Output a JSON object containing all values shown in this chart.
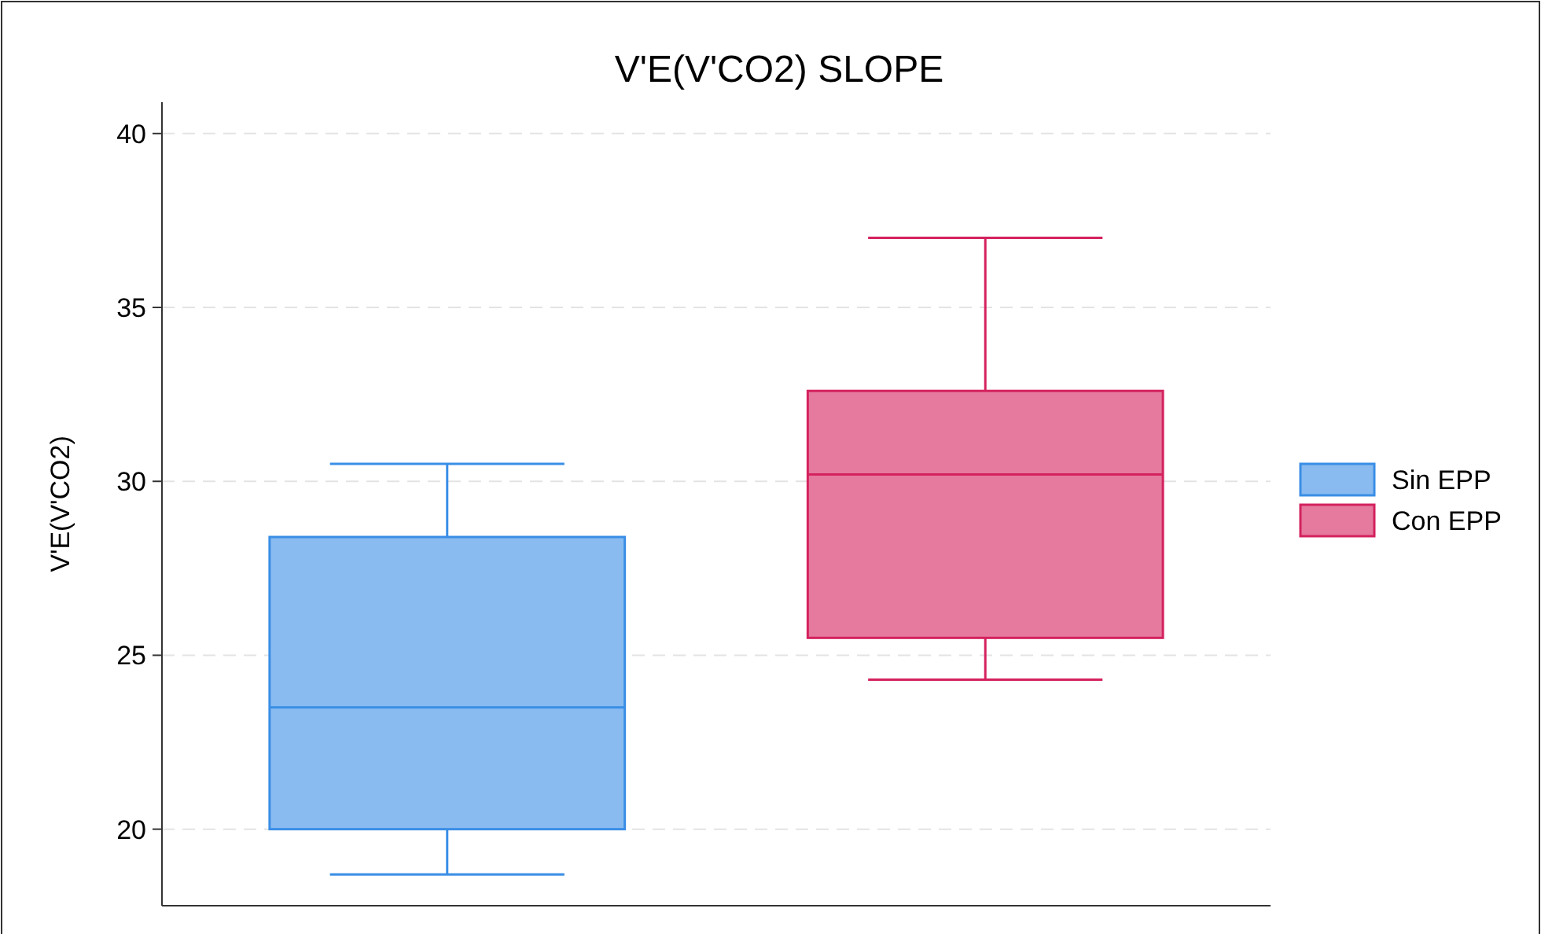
{
  "chart_data": {
    "type": "box",
    "title": "V'E(V'CO2) SLOPE",
    "ylabel": "V'E(V'CO2)",
    "categories": [
      null,
      null
    ],
    "ylim": [
      17.8,
      40.9
    ],
    "yticks": [
      20,
      25,
      30,
      35,
      40
    ],
    "grid": "y",
    "legend": "right",
    "tick_labels": "y",
    "series": [
      {
        "name": "Sin EPP",
        "color": "#3a8ee6",
        "boxes": [
          {
            "low": 18.7,
            "q1": 20,
            "median": 23.5,
            "q3": 28.4,
            "high": 30.5
          },
          null
        ]
      },
      {
        "name": "Con EPP",
        "color": "#d4225e",
        "boxes": [
          null,
          {
            "low": 24.3,
            "q1": 25.5,
            "median": 30.2,
            "q3": 32.6,
            "high": 37.0
          }
        ]
      }
    ]
  }
}
